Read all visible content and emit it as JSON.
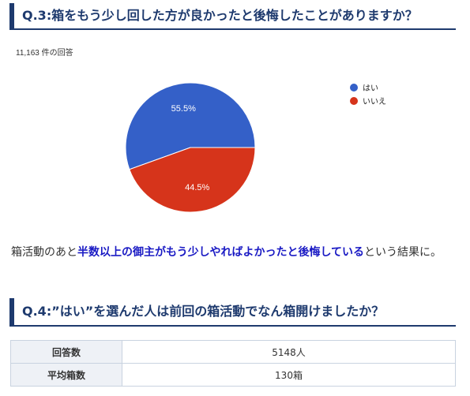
{
  "q3": {
    "heading": "Q.3:箱をもう少し回した方が良かったと後悔したことがありますか？",
    "response_count": "11,163 件の回答"
  },
  "chart_data": {
    "type": "pie",
    "slices": [
      {
        "label": "はい",
        "value": 55.5,
        "display": "55.5%",
        "color": "#3460c8"
      },
      {
        "label": "いいえ",
        "value": 44.5,
        "display": "44.5%",
        "color": "#d6341b"
      }
    ],
    "legend_position": "right"
  },
  "body": {
    "prefix": "箱活動のあと",
    "highlight": "半数以上の御主がもう少しやればよかったと後悔している",
    "suffix": "という結果に。"
  },
  "q4": {
    "heading": "Q.4:”はい”を選んだ人は前回の箱活動でなん箱開けましたか？"
  },
  "table": {
    "rows": [
      {
        "label": "回答数",
        "value": "5148人"
      },
      {
        "label": "平均箱数",
        "value": "130箱"
      }
    ]
  }
}
